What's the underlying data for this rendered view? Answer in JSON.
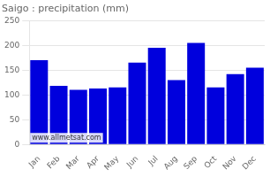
{
  "chart_data": {
    "type": "bar",
    "title": "Saigo : precipitation (mm)",
    "categories": [
      "Jan",
      "Feb",
      "Mar",
      "Apr",
      "May",
      "Jun",
      "Jul",
      "Aug",
      "Sep",
      "Oct",
      "Nov",
      "Dec"
    ],
    "values": [
      170,
      118,
      110,
      113,
      115,
      165,
      195,
      130,
      205,
      115,
      142,
      155
    ],
    "color": "#0000dd",
    "ylim": [
      0,
      250
    ],
    "yticks": [
      0,
      50,
      100,
      150,
      200,
      250
    ],
    "grid": true,
    "annotation": "www.allmetsat.com"
  }
}
